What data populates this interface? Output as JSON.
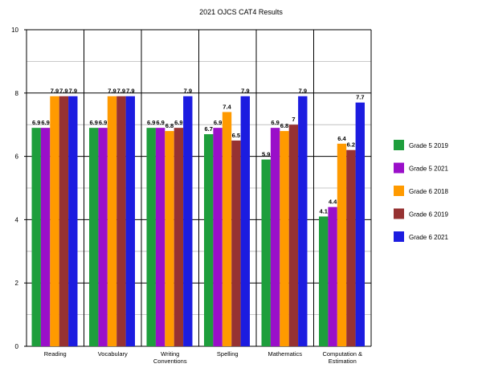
{
  "chart_data": {
    "type": "bar",
    "title": "2021 OJCS CAT4 Results",
    "ylim": [
      0,
      10
    ],
    "yticks": [
      0,
      2,
      4,
      6,
      8,
      10
    ],
    "grid": "y",
    "legend_position": "right",
    "categories": [
      [
        "Reading"
      ],
      [
        "Vocabulary"
      ],
      [
        "Writing",
        "Conventions"
      ],
      [
        "Spelling"
      ],
      [
        "Mathematics"
      ],
      [
        "Computation &",
        "Estimation"
      ]
    ],
    "series": [
      {
        "name": "Grade 5 2019",
        "color": "#1e9e3c",
        "values": [
          6.9,
          6.9,
          6.9,
          6.7,
          5.9,
          4.1
        ],
        "labels": [
          "6.9",
          "6.9",
          "6.9",
          "6.7",
          "5.9",
          "4.1"
        ]
      },
      {
        "name": "Grade 5 2021",
        "color": "#9a0fc9",
        "values": [
          6.9,
          6.9,
          6.9,
          6.9,
          6.9,
          4.4
        ],
        "labels": [
          "6.9",
          "6.9",
          "6.9",
          "6.9",
          "6.9",
          "4.4"
        ]
      },
      {
        "name": "Grade 6 2018",
        "color": "#ff9a00",
        "values": [
          7.9,
          7.9,
          6.8,
          7.4,
          6.8,
          6.4
        ],
        "labels": [
          "7.9",
          "7.9",
          "6.8",
          "7.4",
          "6.8",
          "6.4"
        ]
      },
      {
        "name": "Grade 6 2019",
        "color": "#963232",
        "values": [
          7.9,
          7.9,
          6.9,
          6.5,
          7.0,
          6.2
        ],
        "labels": [
          "7.9",
          "7.9",
          "6.9",
          "6.5",
          "7",
          "6.2"
        ]
      },
      {
        "name": "Grade 6 2021",
        "color": "#1c1ce0",
        "values": [
          7.9,
          7.9,
          7.9,
          7.9,
          7.9,
          7.7
        ],
        "labels": [
          "7.9",
          "7.9",
          "7.9",
          "7.9",
          "7.9",
          "7.7"
        ]
      }
    ],
    "label_visibility": [
      [
        true,
        true,
        true,
        true,
        true
      ],
      [
        true,
        true,
        true,
        true,
        true
      ],
      [
        true,
        true,
        true,
        true,
        true
      ],
      [
        true,
        true,
        true,
        true,
        true
      ],
      [
        true,
        true,
        true,
        true,
        true
      ],
      [
        true,
        true,
        true,
        true,
        true
      ]
    ]
  }
}
